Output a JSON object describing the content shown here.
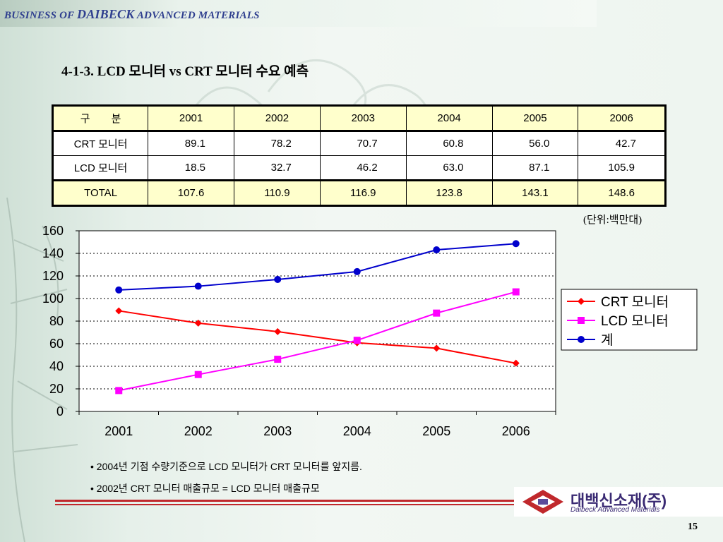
{
  "header": {
    "part1": "BUSINESS OF ",
    "part2": "DAIBECK",
    "part3": " ADVANCED MATERIALS"
  },
  "title": "4-1-3. LCD 모니터 vs CRT 모니터 수요 예측",
  "table": {
    "header": [
      "구　　분",
      "2001",
      "2002",
      "2003",
      "2004",
      "2005",
      "2006"
    ],
    "rows": [
      [
        "CRT 모니터",
        "89.1",
        "78.2",
        "70.7",
        "60.8",
        "56.0",
        "42.7"
      ],
      [
        "LCD 모니터",
        "18.5",
        "32.7",
        "46.2",
        "63.0",
        "87.1",
        "105.9"
      ],
      [
        "TOTAL",
        "107.6",
        "110.9",
        "116.9",
        "123.8",
        "143.1",
        "148.6"
      ]
    ]
  },
  "unit_label": "(단위:백만대)",
  "chart_data": {
    "type": "line",
    "categories": [
      "2001",
      "2002",
      "2003",
      "2004",
      "2005",
      "2006"
    ],
    "series": [
      {
        "name": "CRT 모니터",
        "values": [
          89.1,
          78.2,
          70.7,
          60.8,
          56.0,
          42.7
        ],
        "color": "#ff0000",
        "marker": "diamond"
      },
      {
        "name": "LCD 모니터",
        "values": [
          18.5,
          32.7,
          46.2,
          63.0,
          87.1,
          105.9
        ],
        "color": "#ff00ff",
        "marker": "square"
      },
      {
        "name": "계",
        "values": [
          107.6,
          110.9,
          116.9,
          123.8,
          143.1,
          148.6
        ],
        "color": "#0000cc",
        "marker": "circle"
      }
    ],
    "ylim": [
      0,
      160
    ],
    "yticks": [
      0,
      20,
      40,
      60,
      80,
      100,
      120,
      140,
      160
    ],
    "grid": "horizontal-dotted",
    "legend": "right"
  },
  "bullets": [
    "• 2004년 기점 수량기준으로 LCD 모니터가 CRT 모니터를 앞지름.",
    "• 2002년 CRT 모니터 매출규모 = LCD 모니터 매출규모"
  ],
  "logo": {
    "korean": "대백신소재(주)",
    "english": "Daibeck Advanced Materials"
  },
  "page_number": "15"
}
